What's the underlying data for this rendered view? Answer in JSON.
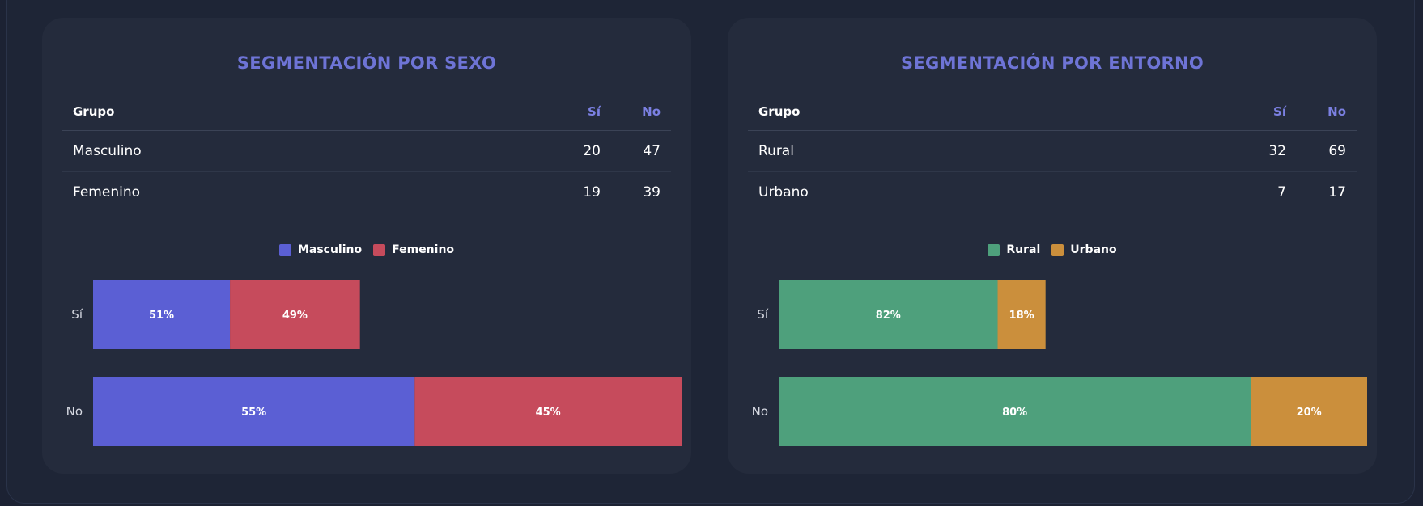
{
  "panels": [
    {
      "title": "SEGMENTACIÓN POR SEXO",
      "table": {
        "headers": [
          "Grupo",
          "Sí",
          "No"
        ],
        "rows": [
          {
            "group": "Masculino",
            "si": "20",
            "no": "47"
          },
          {
            "group": "Femenino",
            "si": "19",
            "no": "39"
          }
        ]
      },
      "legend": [
        {
          "label": "Masculino",
          "color": "#5b5fd4"
        },
        {
          "label": "Femenino",
          "color": "#c64b5c"
        }
      ]
    },
    {
      "title": "SEGMENTACIÓN POR ENTORNO",
      "table": {
        "headers": [
          "Grupo",
          "Sí",
          "No"
        ],
        "rows": [
          {
            "group": "Rural",
            "si": "32",
            "no": "69"
          },
          {
            "group": "Urbano",
            "si": "7",
            "no": "17"
          }
        ]
      },
      "legend": [
        {
          "label": "Rural",
          "color": "#4ea07c"
        },
        {
          "label": "Urbano",
          "color": "#cb8f3c"
        }
      ]
    }
  ],
  "chart_data": [
    {
      "type": "bar",
      "orientation": "horizontal",
      "stacked": true,
      "categories": [
        "Sí",
        "No"
      ],
      "series": [
        {
          "name": "Masculino",
          "values": [
            20,
            47
          ],
          "labels": [
            "51%",
            "55%"
          ],
          "color": "#5b5fd4"
        },
        {
          "name": "Femenino",
          "values": [
            19,
            39
          ],
          "labels": [
            "49%",
            "45%"
          ],
          "color": "#c64b5c"
        }
      ],
      "xlim": [
        0,
        86
      ],
      "legend": "top-center"
    },
    {
      "type": "bar",
      "orientation": "horizontal",
      "stacked": true,
      "categories": [
        "Sí",
        "No"
      ],
      "series": [
        {
          "name": "Rural",
          "values": [
            32,
            69
          ],
          "labels": [
            "82%",
            "80%"
          ],
          "color": "#4ea07c"
        },
        {
          "name": "Urbano",
          "values": [
            7,
            17
          ],
          "labels": [
            "18%",
            "20%"
          ],
          "color": "#cb8f3c"
        }
      ],
      "xlim": [
        0,
        86
      ],
      "legend": "top-center"
    }
  ]
}
